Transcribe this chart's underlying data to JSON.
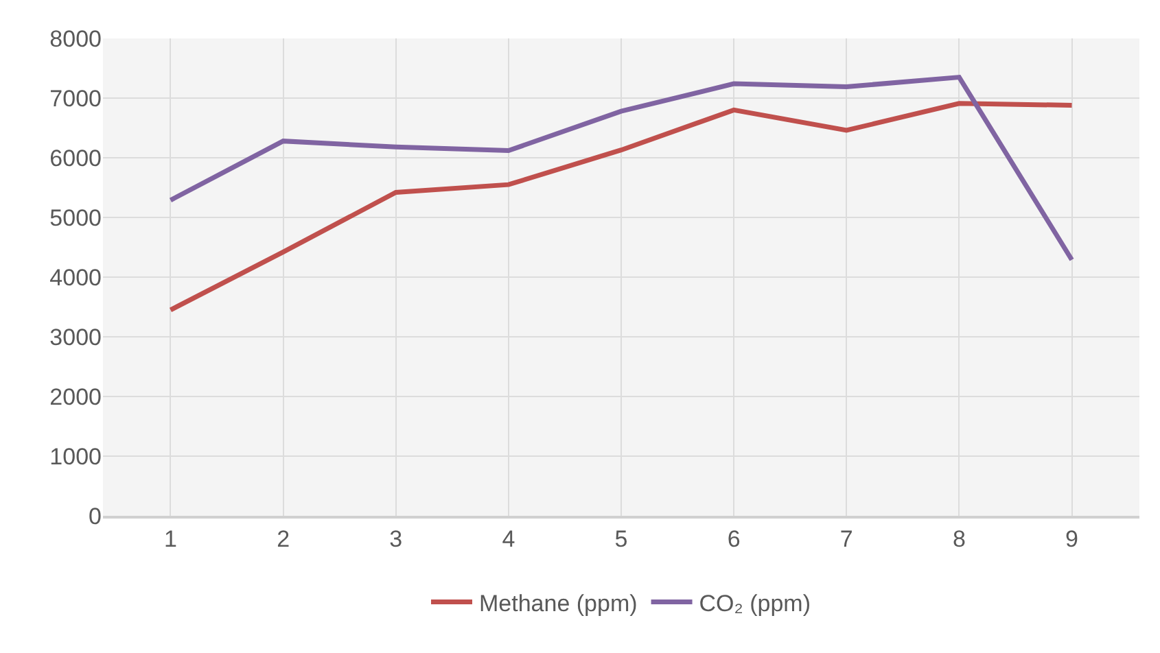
{
  "chart_data": {
    "type": "line",
    "categories": [
      "1",
      "2",
      "3",
      "4",
      "5",
      "6",
      "7",
      "8",
      "9"
    ],
    "series": [
      {
        "name": "Methane (ppm)",
        "color": "#c0504d",
        "values": [
          3450,
          4420,
          5420,
          5550,
          6130,
          6800,
          6460,
          6910,
          6880
        ]
      },
      {
        "name": "CO₂ (ppm)",
        "color": "#8064a2",
        "values": [
          5290,
          6280,
          6180,
          6120,
          6780,
          7240,
          7190,
          7350,
          4290
        ]
      }
    ],
    "ylim": [
      0,
      8000
    ],
    "yticks": [
      0,
      1000,
      2000,
      3000,
      4000,
      5000,
      6000,
      7000,
      8000
    ],
    "grid": true,
    "legend": "bottom",
    "marker": "none",
    "line_style": "solid"
  }
}
